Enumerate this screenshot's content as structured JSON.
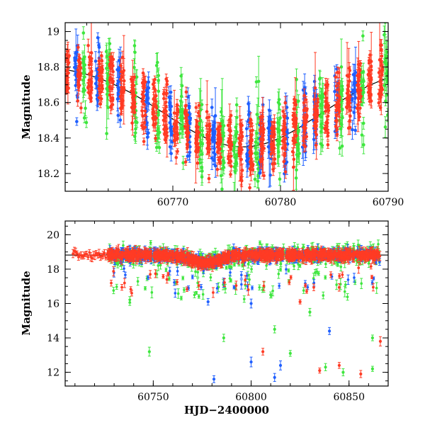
{
  "colors": {
    "red": "#ff3b24",
    "blue": "#1f5fff",
    "green": "#3ee63e",
    "model": "#000000"
  },
  "chart_data": [
    {
      "type": "scatter",
      "panel": "top",
      "title": "",
      "xlabel": "",
      "ylabel": "Magnitude",
      "xlim": [
        60760,
        60790
      ],
      "ylim": [
        19.05,
        18.1
      ],
      "y_inverted": true,
      "xticks": [
        60770,
        60780,
        60790
      ],
      "xtick_labels": [
        "60770",
        "60780",
        "60790"
      ],
      "yticks": [
        18.2,
        18.4,
        18.6,
        18.8,
        19.0
      ],
      "ytick_labels": [
        "18.2",
        "18.4",
        "18.6",
        "18.8",
        "19"
      ],
      "model_curve": {
        "baseline": 18.82,
        "peak": 18.35,
        "t_peak": 60776.5,
        "width": 7.2
      },
      "series": [
        {
          "color": "red",
          "epochs": [
            60760.2,
            60761.3,
            60762.3,
            60763.3,
            60764.3,
            60765.3,
            60766.3,
            60767.3,
            60768.3,
            60769.3,
            60770.3,
            60771.3,
            60772.3,
            60773.3,
            60774.3,
            60775.3,
            60776.3,
            60777.3,
            60778.3,
            60779.3,
            60780.3,
            60781.3,
            60782.3,
            60783.3,
            60784.3,
            60785.3,
            60786.3,
            60787.3,
            60788.3,
            60789.3
          ]
        },
        {
          "color": "blue",
          "epochs": [
            60761.0,
            60763.0,
            60765.0,
            60767.6,
            60769.8,
            60771.5,
            60773.8,
            60777.0,
            60778.2,
            60779.0,
            60780.5,
            60782.2,
            60783.2,
            60785.2,
            60786.8
          ]
        },
        {
          "color": "green",
          "epochs": [
            60761.8,
            60764.0,
            60766.5,
            60768.6,
            60770.8,
            60772.6,
            60774.6,
            60775.8,
            60777.8,
            60779.8,
            60781.6,
            60783.8,
            60785.6,
            60787.6,
            60789.8
          ]
        }
      ]
    },
    {
      "type": "scatter",
      "panel": "bottom",
      "title": "",
      "xlabel": "HJD−2400000",
      "ylabel": "Magnitude",
      "xlim": [
        60705,
        60870
      ],
      "ylim": [
        20.8,
        11.2
      ],
      "y_inverted": true,
      "xticks": [
        60750,
        60800,
        60850
      ],
      "xtick_labels": [
        "60750",
        "60800",
        "60850"
      ],
      "yticks": [
        12,
        14,
        16,
        18,
        20
      ],
      "ytick_labels": [
        "12",
        "14",
        "16",
        "18",
        "20"
      ],
      "model_curve": {
        "baseline": 18.82,
        "peak": 18.35,
        "t_peak": 60776.5,
        "width": 7.2
      },
      "outliers": [
        {
          "x": 60781,
          "y": 11.6,
          "color": "blue"
        },
        {
          "x": 60812,
          "y": 11.7,
          "color": "blue"
        },
        {
          "x": 60800,
          "y": 12.6,
          "color": "blue"
        },
        {
          "x": 60815,
          "y": 12.4,
          "color": "blue"
        },
        {
          "x": 60806,
          "y": 13.2,
          "color": "red"
        },
        {
          "x": 60835,
          "y": 12.1,
          "color": "red"
        },
        {
          "x": 60845,
          "y": 12.4,
          "color": "red"
        },
        {
          "x": 60856,
          "y": 11.9,
          "color": "red"
        },
        {
          "x": 60866,
          "y": 13.8,
          "color": "red"
        },
        {
          "x": 60748,
          "y": 13.2,
          "color": "green"
        },
        {
          "x": 60786,
          "y": 14.0,
          "color": "green"
        },
        {
          "x": 60812,
          "y": 14.5,
          "color": "green"
        },
        {
          "x": 60820,
          "y": 13.1,
          "color": "green"
        },
        {
          "x": 60838,
          "y": 12.3,
          "color": "green"
        },
        {
          "x": 60847,
          "y": 12.0,
          "color": "green"
        },
        {
          "x": 60862,
          "y": 12.2,
          "color": "green"
        },
        {
          "x": 60840,
          "y": 14.4,
          "color": "blue"
        },
        {
          "x": 60825,
          "y": 16.1,
          "color": "red"
        },
        {
          "x": 60778,
          "y": 16.1,
          "color": "blue"
        },
        {
          "x": 60800,
          "y": 16.0,
          "color": "blue"
        },
        {
          "x": 60862,
          "y": 14.0,
          "color": "green"
        },
        {
          "x": 60830,
          "y": 15.5,
          "color": "green"
        },
        {
          "x": 60810,
          "y": 16.5,
          "color": "green"
        },
        {
          "x": 60757,
          "y": 17.4,
          "color": "red"
        }
      ]
    }
  ]
}
